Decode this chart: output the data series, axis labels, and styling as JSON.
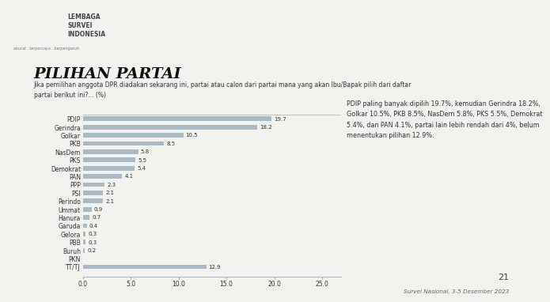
{
  "title": "PILIHAN PARTAI",
  "subtitle": "Jika pemilihan anggota DPR diadakan sekarang ini, partai atau calon dari partai mana yang akan Ibu/Bapak pilih dari daftar\npartai berikut ini?... (%)",
  "categories": [
    "PDIP",
    "Gerindra",
    "Golkar",
    "PKB",
    "NasDem",
    "PKS",
    "Demokrat",
    "PAN",
    "PPP",
    "PSI",
    "Perindo",
    "Ummat",
    "Hanura",
    "Garuda",
    "Gelora",
    "PBB",
    "Buruh",
    "PKN",
    "TT/TJ"
  ],
  "values": [
    19.7,
    18.2,
    10.5,
    8.5,
    5.8,
    5.5,
    5.4,
    4.1,
    2.3,
    2.1,
    2.1,
    0.9,
    0.7,
    0.4,
    0.3,
    0.3,
    0.2,
    0.0,
    12.9
  ],
  "bar_color": "#a8bac8",
  "annotation_text": "PDIP paling banyak dipilih 19.7%, kemudian Gerindra 18.2%,\nGolkar 10.5%, PKB 8.5%, NasDem 5.8%, PKS 5.5%, Demokrat\n5.4%, dan PAN 4.1%, partai lain lebih rendah dari 4%, belum\nmenentukan pilihan 12.9%.",
  "xlabel_ticks": [
    0.0,
    5.0,
    10.0,
    15.0,
    20.0,
    25.0
  ],
  "xlim": [
    0,
    27
  ],
  "footer": "Survei Nasional, 3-5 Desember 2023",
  "page_number": "21",
  "bg_color": "#f2f2ee",
  "header_bg": "#c8c8c4",
  "header_red": "#cc2222",
  "bar_text_color": "#333333",
  "title_color": "#111111",
  "subtitle_color": "#333333",
  "annotation_color": "#333333",
  "footer_color": "#666666",
  "lsi_text": "LEMBAGA\nSURVEI\nINDONESIA",
  "lsi_subtext": "akurat . terpercaya . berpengaruh",
  "header_stripe_color": "#b0b0ac"
}
